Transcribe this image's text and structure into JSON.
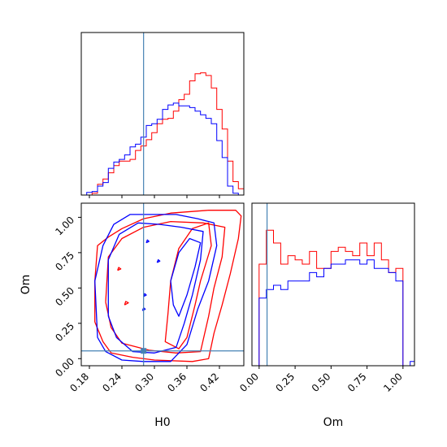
{
  "chart_data": {
    "type": "corner",
    "truth": {
      "H0": 0.28,
      "Om": 0.055
    },
    "truth_color": "#4682b4",
    "series_colors": [
      "#ff0000",
      "#0000ff"
    ],
    "marginals": [
      {
        "param": "H0",
        "xlim": [
          0.165,
          0.465
        ],
        "xticks": [
          0.18,
          0.24,
          0.3,
          0.36,
          0.42
        ],
        "edges": [
          0.165,
          0.175,
          0.185,
          0.195,
          0.205,
          0.215,
          0.225,
          0.235,
          0.245,
          0.255,
          0.265,
          0.275,
          0.285,
          0.295,
          0.305,
          0.315,
          0.325,
          0.335,
          0.345,
          0.355,
          0.365,
          0.375,
          0.385,
          0.395,
          0.405,
          0.415,
          0.425,
          0.435,
          0.445,
          0.455,
          0.465
        ],
        "series": [
          {
            "values": [
              0,
              0,
              2,
              12,
              18,
              25,
              33,
              38,
              38,
              40,
              50,
              55,
              62,
              70,
              80,
              85,
              86,
              94,
              107,
              113,
              128,
              136,
              137,
              134,
              120,
              96,
              74,
              38,
              15,
              7
            ]
          },
          {
            "values": [
              0,
              3,
              4,
              10,
              14,
              30,
              37,
              40,
              45,
              54,
              57,
              65,
              78,
              80,
              85,
              96,
              101,
              103,
              100,
              100,
              98,
              94,
              90,
              86,
              80,
              61,
              42,
              10,
              2,
              0
            ]
          }
        ]
      },
      {
        "param": "Om",
        "xlim": [
          -0.05,
          1.08
        ],
        "xticks": [
          0.0,
          0.25,
          0.5,
          0.75,
          1.0
        ],
        "xtick_labels": [
          "0.00",
          "0.25",
          "0.50",
          "0.75",
          "1.00"
        ],
        "edges": [
          -0.05,
          0.0,
          0.05,
          0.1,
          0.15,
          0.2,
          0.25,
          0.3,
          0.35,
          0.4,
          0.45,
          0.5,
          0.55,
          0.6,
          0.65,
          0.7,
          0.75,
          0.8,
          0.85,
          0.9,
          0.95,
          1.0,
          1.05,
          1.08
        ],
        "series": [
          {
            "values": [
              0,
              120,
              160,
              145,
              120,
              130,
              125,
              120,
              135,
              115,
              115,
              135,
              140,
              135,
              130,
              145,
              130,
              145,
              125,
              110,
              115,
              0,
              0
            ]
          },
          {
            "values": [
              0,
              80,
              90,
              95,
              90,
              100,
              100,
              100,
              110,
              105,
              115,
              120,
              120,
              125,
              125,
              120,
              125,
              115,
              115,
              110,
              100,
              0,
              5
            ]
          }
        ]
      }
    ],
    "joint": {
      "x_param": "H0",
      "y_param": "Om",
      "xlim": [
        0.165,
        0.465
      ],
      "ylim": [
        -0.05,
        1.1
      ],
      "xticks": [
        0.18,
        0.24,
        0.3,
        0.36,
        0.42
      ],
      "xtick_labels": [
        "0.18",
        "0.24",
        "0.30",
        "0.36",
        "0.42"
      ],
      "yticks": [
        0.0,
        0.25,
        0.5,
        0.75,
        1.0
      ],
      "ytick_labels": [
        "0.00",
        "0.25",
        "0.50",
        "0.75",
        "1.00"
      ],
      "xlabel": "H0",
      "ylabel": "Om",
      "contours": [
        {
          "series": 0,
          "points": [
            [
              0.19,
              0.26
            ],
            [
              0.19,
              0.55
            ],
            [
              0.195,
              0.8
            ],
            [
              0.215,
              0.86
            ],
            [
              0.24,
              0.92
            ],
            [
              0.28,
              0.99
            ],
            [
              0.33,
              1.03
            ],
            [
              0.4,
              1.05
            ],
            [
              0.45,
              1.05
            ],
            [
              0.46,
              1.01
            ],
            [
              0.455,
              0.85
            ],
            [
              0.44,
              0.6
            ],
            [
              0.425,
              0.38
            ],
            [
              0.41,
              0.18
            ],
            [
              0.4,
              0.0
            ],
            [
              0.37,
              -0.02
            ],
            [
              0.3,
              -0.01
            ],
            [
              0.26,
              0.01
            ],
            [
              0.22,
              0.04
            ],
            [
              0.205,
              0.12
            ],
            [
              0.19,
              0.26
            ]
          ]
        },
        {
          "series": 0,
          "points": [
            [
              0.21,
              0.4
            ],
            [
              0.215,
              0.72
            ],
            [
              0.24,
              0.85
            ],
            [
              0.28,
              0.93
            ],
            [
              0.33,
              0.97
            ],
            [
              0.39,
              0.96
            ],
            [
              0.43,
              0.93
            ],
            [
              0.425,
              0.72
            ],
            [
              0.41,
              0.5
            ],
            [
              0.4,
              0.3
            ],
            [
              0.385,
              0.05
            ],
            [
              0.34,
              0.04
            ],
            [
              0.29,
              0.06
            ],
            [
              0.24,
              0.11
            ],
            [
              0.22,
              0.22
            ],
            [
              0.21,
              0.4
            ]
          ]
        },
        {
          "series": 0,
          "points": [
            [
              0.33,
              0.55
            ],
            [
              0.345,
              0.78
            ],
            [
              0.37,
              0.92
            ],
            [
              0.4,
              0.96
            ],
            [
              0.405,
              0.8
            ],
            [
              0.385,
              0.55
            ],
            [
              0.375,
              0.38
            ],
            [
              0.36,
              0.15
            ],
            [
              0.345,
              0.07
            ],
            [
              0.32,
              0.12
            ],
            [
              0.325,
              0.32
            ],
            [
              0.33,
              0.55
            ]
          ]
        },
        {
          "series": 0,
          "points": [
            [
              0.232,
              0.625
            ],
            [
              0.238,
              0.635
            ],
            [
              0.234,
              0.645
            ],
            [
              0.232,
              0.625
            ]
          ]
        },
        {
          "series": 0,
          "points": [
            [
              0.245,
              0.38
            ],
            [
              0.252,
              0.395
            ],
            [
              0.247,
              0.405
            ],
            [
              0.245,
              0.38
            ]
          ]
        },
        {
          "series": 1,
          "points": [
            [
              0.195,
              0.15
            ],
            [
              0.19,
              0.55
            ],
            [
              0.205,
              0.8
            ],
            [
              0.225,
              0.95
            ],
            [
              0.255,
              1.02
            ],
            [
              0.3,
              1.02
            ],
            [
              0.34,
              1.02
            ],
            [
              0.38,
              0.99
            ],
            [
              0.41,
              0.96
            ],
            [
              0.415,
              0.8
            ],
            [
              0.4,
              0.55
            ],
            [
              0.38,
              0.35
            ],
            [
              0.36,
              0.1
            ],
            [
              0.33,
              -0.02
            ],
            [
              0.28,
              -0.02
            ],
            [
              0.24,
              -0.01
            ],
            [
              0.21,
              0.05
            ],
            [
              0.195,
              0.15
            ]
          ]
        },
        {
          "series": 1,
          "points": [
            [
              0.215,
              0.3
            ],
            [
              0.215,
              0.7
            ],
            [
              0.235,
              0.88
            ],
            [
              0.27,
              0.96
            ],
            [
              0.31,
              0.95
            ],
            [
              0.35,
              0.93
            ],
            [
              0.39,
              0.9
            ],
            [
              0.385,
              0.7
            ],
            [
              0.37,
              0.45
            ],
            [
              0.355,
              0.25
            ],
            [
              0.34,
              0.08
            ],
            [
              0.3,
              0.04
            ],
            [
              0.26,
              0.05
            ],
            [
              0.23,
              0.15
            ],
            [
              0.215,
              0.3
            ]
          ]
        },
        {
          "series": 1,
          "points": [
            [
              0.33,
              0.55
            ],
            [
              0.345,
              0.75
            ],
            [
              0.365,
              0.85
            ],
            [
              0.385,
              0.82
            ],
            [
              0.375,
              0.65
            ],
            [
              0.36,
              0.45
            ],
            [
              0.345,
              0.3
            ],
            [
              0.335,
              0.38
            ],
            [
              0.33,
              0.55
            ]
          ]
        },
        {
          "series": 1,
          "points": [
            [
              0.285,
              0.82
            ],
            [
              0.29,
              0.83
            ],
            [
              0.287,
              0.84
            ],
            [
              0.285,
              0.82
            ]
          ]
        },
        {
          "series": 1,
          "points": [
            [
              0.305,
              0.68
            ],
            [
              0.31,
              0.69
            ],
            [
              0.307,
              0.7
            ],
            [
              0.305,
              0.68
            ]
          ]
        },
        {
          "series": 1,
          "points": [
            [
              0.28,
              0.44
            ],
            [
              0.285,
              0.45
            ],
            [
              0.282,
              0.46
            ],
            [
              0.28,
              0.44
            ]
          ]
        },
        {
          "series": 1,
          "points": [
            [
              0.278,
              0.34
            ],
            [
              0.283,
              0.35
            ],
            [
              0.28,
              0.36
            ],
            [
              0.278,
              0.34
            ]
          ]
        }
      ]
    }
  }
}
